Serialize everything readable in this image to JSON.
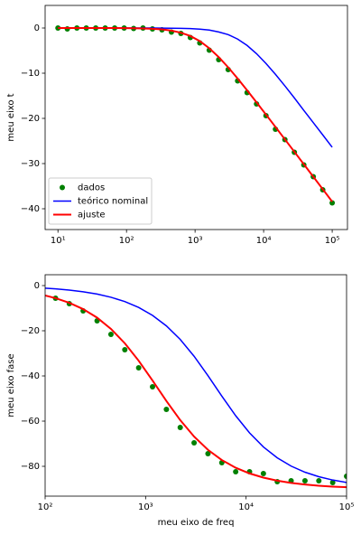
{
  "chart_data": [
    {
      "type": "line",
      "ylabel": "meu eixo t",
      "xscale": "log",
      "legend": "lower left",
      "xlim": [
        6.5,
        167000
      ],
      "ylim": [
        -44.6,
        5
      ],
      "xticks": [
        {
          "value": 10,
          "label": "10¹"
        },
        {
          "value": 100,
          "label": "10²"
        },
        {
          "value": 1000,
          "label": "10³"
        },
        {
          "value": 10000,
          "label": "10⁴"
        },
        {
          "value": 100000,
          "label": "10⁵"
        }
      ],
      "yticks": [
        0,
        {
          "value": -10,
          "label": "−10"
        },
        {
          "value": -20,
          "label": "−20"
        },
        {
          "value": -30,
          "label": "−30"
        },
        {
          "value": -40,
          "label": "−40"
        }
      ],
      "x": [
        10,
        13.7,
        18.9,
        25.9,
        35.6,
        48.9,
        67.2,
        92.4,
        127,
        174,
        239,
        329,
        452,
        621,
        853,
        1172,
        1610,
        2212,
        3039,
        4175,
        5736,
        7880,
        10826,
        14874,
        20434,
        28072,
        38566,
        52983,
        72790,
        100000
      ],
      "series": [
        {
          "name": "dados",
          "color": "#008000",
          "marker": "o",
          "values": [
            0,
            -0.2,
            0,
            0,
            0,
            0,
            0,
            0,
            -0.1,
            0,
            -0.2,
            -0.4,
            -0.9,
            -1.2,
            -2.1,
            -3.3,
            -4.9,
            -7.0,
            -9.2,
            -11.7,
            -14.3,
            -16.8,
            -19.4,
            -22.4,
            -24.7,
            -27.5,
            -30.3,
            -32.9,
            -35.8,
            -38.7
          ]
        },
        {
          "name": "teórico nominal",
          "color": "#0000ff",
          "values": [
            0,
            0,
            0,
            0,
            0,
            0,
            0,
            0,
            0,
            0,
            -0.01,
            -0.02,
            -0.04,
            -0.07,
            -0.13,
            -0.25,
            -0.46,
            -0.87,
            -1.46,
            -2.45,
            -3.85,
            -5.68,
            -7.84,
            -10.25,
            -12.81,
            -15.47,
            -18.23,
            -20.93,
            -23.65,
            -26.39
          ]
        },
        {
          "name": "ajuste",
          "color": "#ff0000",
          "values": [
            0,
            0,
            0,
            0,
            0,
            0,
            -0.01,
            -0.03,
            -0.05,
            -0.09,
            -0.17,
            -0.31,
            -0.58,
            -1.04,
            -1.77,
            -2.9,
            -4.47,
            -6.43,
            -8.7,
            -11.17,
            -13.78,
            -16.45,
            -19.16,
            -21.89,
            -24.64,
            -27.39,
            -30.15,
            -32.9,
            -35.66,
            -38.42
          ]
        }
      ]
    },
    {
      "type": "line",
      "xlabel": "meu eixo de freq",
      "ylabel": "meu eixo fase",
      "xscale": "log",
      "xlim": [
        100,
        100000
      ],
      "ylim": [
        -93.2,
        4.8
      ],
      "xticks": [
        {
          "value": 100,
          "label": "10²"
        },
        {
          "value": 1000,
          "label": "10³"
        },
        {
          "value": 10000,
          "label": "10⁴"
        },
        {
          "value": 100000,
          "label": "10⁵"
        }
      ],
      "yticks": [
        0,
        {
          "value": -20,
          "label": "−20"
        },
        {
          "value": -40,
          "label": "−40"
        },
        {
          "value": -60,
          "label": "−60"
        },
        {
          "value": -80,
          "label": "−80"
        }
      ],
      "x": [
        100,
        127,
        174,
        239,
        329,
        452,
        621,
        853,
        1172,
        1610,
        2212,
        3039,
        4175,
        5736,
        7880,
        10826,
        14874,
        20434,
        28072,
        38566,
        52983,
        72790,
        100000
      ],
      "series": [
        {
          "name": "dados",
          "color": "#008000",
          "marker": "o",
          "values": [
            null,
            -5.6,
            -8.0,
            -11.2,
            -15.6,
            -21.6,
            -28.4,
            -36.4,
            -44.8,
            -54.8,
            -62.8,
            -69.6,
            -74.4,
            -78.4,
            -82.4,
            -82.4,
            -83.2,
            -86.8,
            -86.4,
            -86.4,
            -86.4,
            -87.2,
            -84.4
          ]
        },
        {
          "name": "teórico nominal",
          "color": "#0000ff",
          "values": [
            -1.15,
            -1.46,
            -1.99,
            -2.74,
            -3.76,
            -5.17,
            -7.08,
            -9.68,
            -13.19,
            -17.85,
            -23.86,
            -31.29,
            -39.86,
            -48.92,
            -57.6,
            -65.21,
            -71.42,
            -76.25,
            -79.9,
            -82.61,
            -84.61,
            -86.07,
            -87.14
          ]
        },
        {
          "name": "ajuste",
          "color": "#ff0000",
          "values": [
            -4.4,
            -5.58,
            -7.62,
            -10.42,
            -14.2,
            -19.18,
            -25.54,
            -33.27,
            -42.04,
            -51.07,
            -59.56,
            -66.84,
            -72.71,
            -77.23,
            -80.63,
            -83.15,
            -85.0,
            -86.36,
            -87.35,
            -88.07,
            -88.59,
            -88.98,
            -89.26
          ]
        }
      ]
    }
  ]
}
